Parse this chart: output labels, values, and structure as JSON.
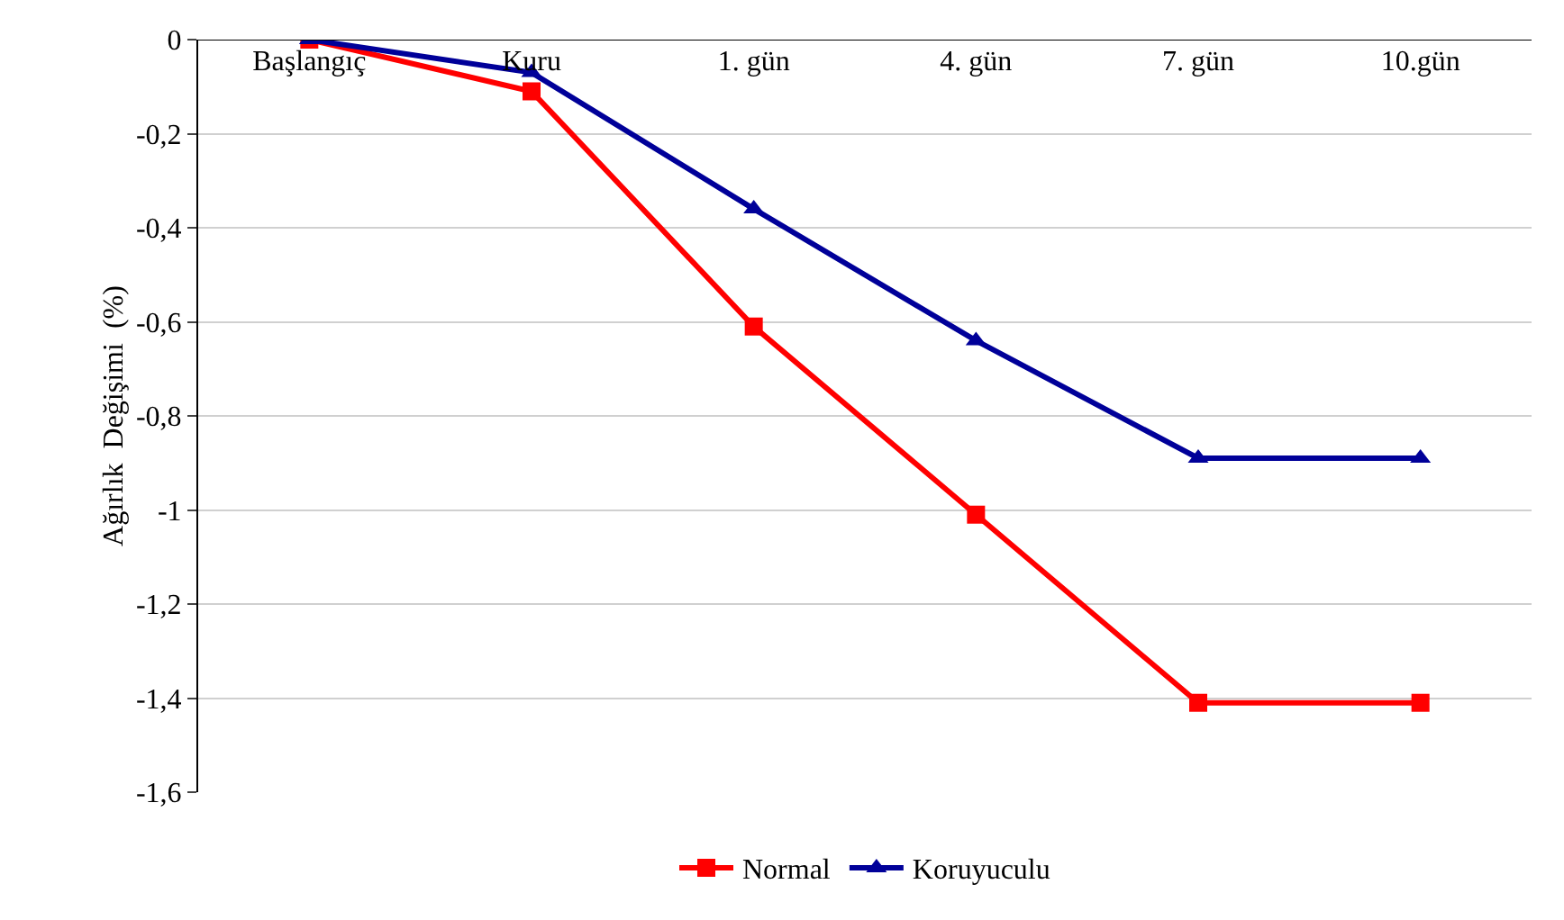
{
  "chart_data": {
    "type": "line",
    "ylabel": "Ağırlık  Değişimi  (%)",
    "categories": [
      "Başlangıç",
      "Kuru",
      "1. gün",
      "4. gün",
      "7. gün",
      "10.gün"
    ],
    "series": [
      {
        "name": "Normal",
        "color": "#ff0000",
        "marker": "square",
        "values": [
          0,
          -0.11,
          -0.61,
          -1.01,
          -1.41,
          -1.41
        ]
      },
      {
        "name": "Koruyuculu",
        "color": "#000099",
        "marker": "triangle",
        "values": [
          0,
          -0.07,
          -0.36,
          -0.64,
          -0.89,
          -0.89
        ]
      }
    ],
    "ylim": [
      -1.6,
      0
    ],
    "yticks": [
      0,
      {
        "value": -0.2,
        "label": "-0,2"
      },
      {
        "value": -0.4,
        "label": "-0,4"
      },
      {
        "value": -0.6,
        "label": "-0,6"
      },
      {
        "value": -0.8,
        "label": "-0,8"
      },
      -1,
      {
        "value": -1.2,
        "label": "-1,2"
      },
      {
        "value": -1.4,
        "label": "-1,4"
      },
      {
        "value": -1.6,
        "label": "-1,6"
      }
    ],
    "grid": "y",
    "legend": "bottom",
    "line_style": "solid"
  }
}
